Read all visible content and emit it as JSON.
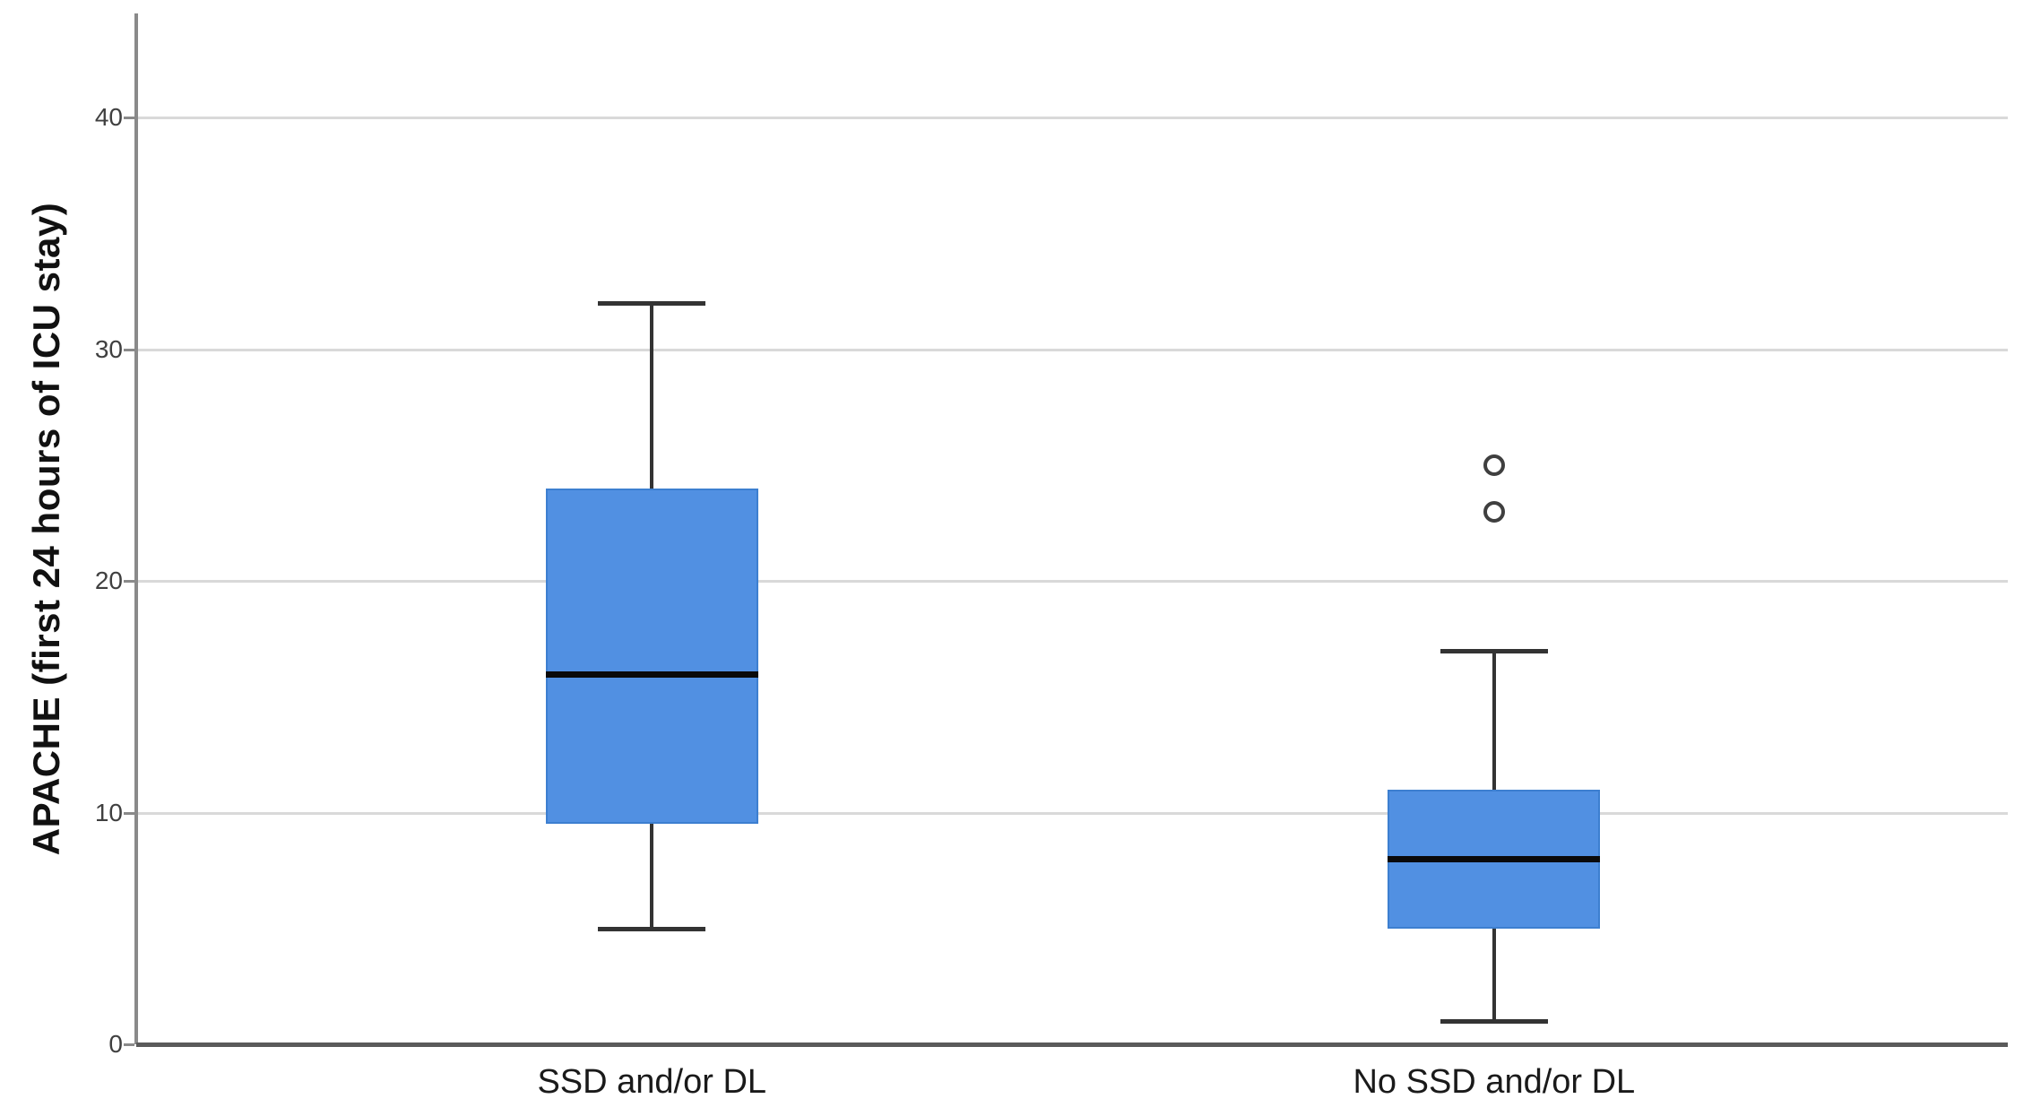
{
  "figure": {
    "background": "#ffffff"
  },
  "chart_data": {
    "type": "box",
    "title": "",
    "xlabel": "",
    "ylabel": "APACHE (first 24 hours of ICU stay)",
    "categories": [
      "SSD and/or DL",
      "No SSD and/or DL"
    ],
    "series": [
      {
        "name": "SSD and/or DL",
        "whisker_low": 5,
        "q1": 9.5,
        "median": 16,
        "q3": 24,
        "whisker_high": 32,
        "outliers": []
      },
      {
        "name": "No SSD and/or DL",
        "whisker_low": 1,
        "q1": 5,
        "median": 8,
        "q3": 11,
        "whisker_high": 17,
        "outliers": [
          23,
          25
        ]
      }
    ],
    "yticks": [
      0,
      10,
      20,
      30,
      40
    ],
    "ylim": [
      0,
      44.5
    ],
    "grid": "horizontal",
    "legend": "none",
    "colors": {
      "box_fill": "#5190e2",
      "box_border": "#3d7fd0",
      "median": "#0a0a0a",
      "whisker": "#333333",
      "gridline": "#d9d9d9",
      "axis": "#8a8a8a",
      "baseline": "#5a5a5a",
      "outlier_stroke": "#3f3f3f",
      "tick_label": "#404040",
      "category_label": "#1a1a1a"
    }
  }
}
